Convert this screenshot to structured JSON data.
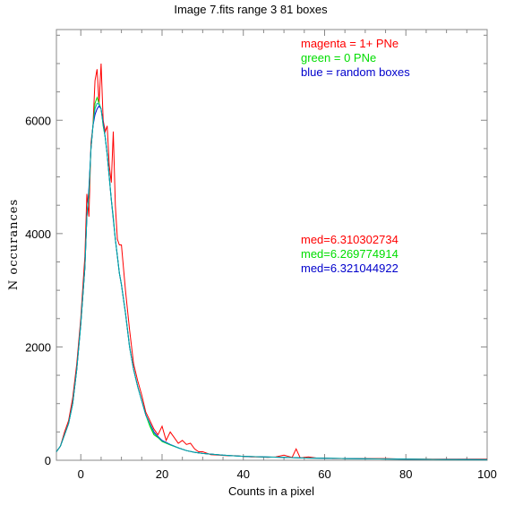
{
  "chart_data": {
    "type": "line",
    "title": "Image 7.fits   range 3    81 boxes",
    "xlabel": "Counts in a pixel",
    "ylabel": "N  occurances",
    "xlim": [
      -6,
      100
    ],
    "ylim": [
      0,
      7600
    ],
    "x_ticks": [
      0,
      20,
      40,
      60,
      80,
      100
    ],
    "y_ticks": [
      0,
      2000,
      4000,
      6000
    ],
    "x_tick_labels": [
      "0",
      "20",
      "40",
      "60",
      "80",
      "100"
    ],
    "y_tick_labels": [
      "0",
      "2000",
      "4000",
      "6000"
    ],
    "grid": false,
    "legend_entries": [
      {
        "label": "magenta = 1+ PNe",
        "color": "#ff0000"
      },
      {
        "label": "green = 0 PNe",
        "color": "#00dd00"
      },
      {
        "label": "blue = random boxes",
        "color": "#0000cc"
      }
    ],
    "annotations": [
      {
        "label": "med=6.310302734",
        "color": "#ff0000"
      },
      {
        "label": "med=6.269774914",
        "color": "#00dd00"
      },
      {
        "label": "med=6.321044922",
        "color": "#0000cc"
      }
    ],
    "series": [
      {
        "color": "#ff0000",
        "x": [
          -6,
          -5,
          -4,
          -3,
          -2,
          -1,
          0,
          1,
          1.5,
          2,
          2.5,
          3,
          3.5,
          4,
          4.5,
          5,
          5.5,
          6,
          6.5,
          7,
          7.5,
          8,
          8.5,
          9,
          9.5,
          10,
          11,
          12,
          13,
          14,
          15,
          16,
          17,
          18,
          19,
          20,
          21,
          22,
          23,
          24,
          25,
          26,
          27,
          28,
          29,
          30,
          32,
          34,
          36,
          38,
          40,
          42,
          44,
          46,
          48,
          50,
          52,
          53,
          54,
          56,
          58,
          60,
          62,
          64,
          66,
          68,
          70,
          75,
          80,
          85,
          90,
          95,
          100
        ],
        "y": [
          150,
          250,
          500,
          700,
          1100,
          1700,
          2500,
          3600,
          4700,
          4300,
          5600,
          5900,
          6700,
          6900,
          6300,
          7000,
          6000,
          5800,
          5900,
          5200,
          4900,
          5800,
          4500,
          3900,
          3800,
          3800,
          3000,
          2300,
          1700,
          1400,
          1150,
          850,
          700,
          550,
          450,
          600,
          350,
          500,
          400,
          300,
          350,
          280,
          300,
          200,
          150,
          150,
          100,
          90,
          80,
          80,
          70,
          60,
          60,
          50,
          60,
          90,
          50,
          200,
          40,
          60,
          40,
          40,
          30,
          30,
          30,
          30,
          30,
          30,
          20,
          20,
          20,
          20,
          20
        ]
      },
      {
        "color": "#00dd00",
        "x": [
          -6,
          -5,
          -4,
          -3,
          -2,
          -1,
          0,
          1,
          1.5,
          2,
          2.5,
          3,
          3.5,
          4,
          4.5,
          5,
          5.5,
          6,
          6.5,
          7,
          7.5,
          8,
          8.5,
          9,
          9.5,
          10,
          11,
          12,
          13,
          14,
          15,
          16,
          17,
          18,
          19,
          20,
          22,
          24,
          26,
          28,
          30,
          35,
          40,
          45,
          50,
          55,
          60,
          65,
          70,
          80,
          90,
          100
        ],
        "y": [
          150,
          250,
          450,
          650,
          1000,
          1600,
          2400,
          3400,
          4300,
          4700,
          5500,
          5900,
          6300,
          6400,
          6300,
          6200,
          5900,
          5700,
          5400,
          5000,
          4600,
          4300,
          3900,
          3600,
          3300,
          3100,
          2600,
          2000,
          1600,
          1300,
          1050,
          800,
          600,
          450,
          400,
          330,
          270,
          220,
          170,
          140,
          120,
          90,
          70,
          60,
          50,
          40,
          35,
          30,
          25,
          20,
          15,
          10
        ]
      },
      {
        "color": "#0000cc",
        "x": [
          -6,
          -5,
          -4,
          -3,
          -2,
          -1,
          0,
          1,
          1.5,
          2,
          2.5,
          3,
          3.5,
          4,
          4.5,
          5,
          5.5,
          6,
          6.5,
          7,
          7.5,
          8,
          8.5,
          9,
          9.5,
          10,
          11,
          12,
          13,
          14,
          15,
          16,
          17,
          18,
          19,
          20,
          22,
          24,
          26,
          28,
          30,
          35,
          40,
          45,
          50,
          55,
          60,
          65,
          70,
          80,
          90,
          100
        ],
        "y": [
          150,
          250,
          450,
          650,
          1000,
          1600,
          2400,
          3400,
          4300,
          4800,
          5500,
          5900,
          6100,
          6200,
          6250,
          6200,
          5950,
          5700,
          5400,
          5000,
          4600,
          4250,
          3900,
          3600,
          3300,
          3100,
          2600,
          2000,
          1600,
          1300,
          1050,
          800,
          650,
          500,
          420,
          350,
          280,
          220,
          170,
          140,
          120,
          90,
          70,
          60,
          50,
          40,
          35,
          30,
          25,
          20,
          15,
          10
        ]
      },
      {
        "color": "#00aaaa",
        "x": [
          -6,
          -5,
          -4,
          -3,
          -2,
          -1,
          0,
          1,
          1.5,
          2,
          2.5,
          3,
          3.5,
          4,
          4.5,
          5,
          5.5,
          6,
          6.5,
          7,
          7.5,
          8,
          8.5,
          9,
          9.5,
          10,
          11,
          12,
          13,
          14,
          15,
          16,
          17,
          18,
          19,
          20,
          22,
          24,
          26,
          28,
          30,
          35,
          40,
          45,
          50,
          55,
          60,
          65,
          70,
          80,
          90,
          100
        ],
        "y": [
          150,
          250,
          450,
          650,
          1000,
          1600,
          2400,
          3400,
          4300,
          4750,
          5500,
          5900,
          6200,
          6300,
          6280,
          6200,
          5920,
          5700,
          5400,
          5000,
          4600,
          4270,
          3900,
          3600,
          3300,
          3100,
          2600,
          2000,
          1600,
          1300,
          1050,
          800,
          640,
          480,
          410,
          340,
          275,
          220,
          170,
          140,
          120,
          90,
          70,
          60,
          50,
          40,
          35,
          30,
          25,
          20,
          15,
          10
        ]
      }
    ]
  }
}
